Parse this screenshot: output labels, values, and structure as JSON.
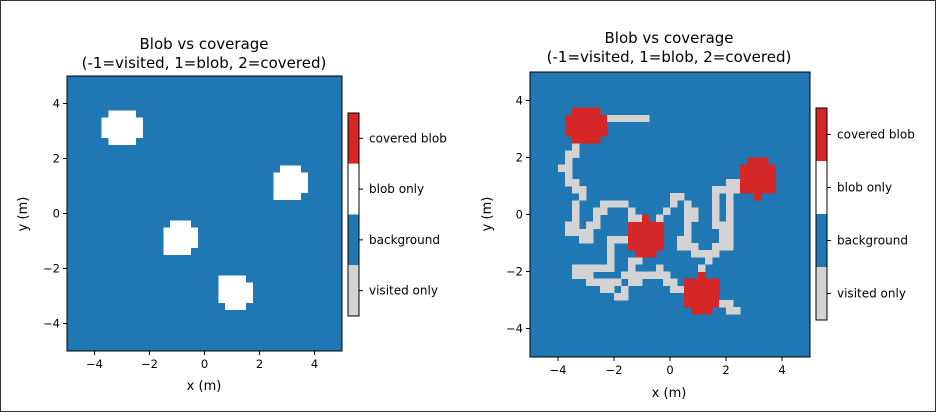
{
  "chart_data": [
    {
      "type": "heatmap",
      "title": "Blob vs coverage",
      "subtitle": "(-1=visited, 1=blob, 2=covered)",
      "xlabel": "x (m)",
      "ylabel": "y (m)",
      "xlim": [
        -5,
        5
      ],
      "ylim": [
        -5,
        5
      ],
      "xticks": [
        "−4",
        "−2",
        "0",
        "2",
        "4"
      ],
      "yticks": [
        "−4",
        "−2",
        "0",
        "2",
        "4"
      ],
      "grid": false,
      "colormap": [
        {
          "value": 2,
          "label": "covered blob",
          "color": "#d62728"
        },
        {
          "value": 1,
          "label": "blob only",
          "color": "#ffffff"
        },
        {
          "value": 0,
          "label": "background",
          "color": "#1f77b4"
        },
        {
          "value": -1,
          "label": "visited only",
          "color": "#d3d3d3"
        }
      ],
      "blobs": [
        {
          "x": -3.0,
          "y": 3.1,
          "r": 0.7,
          "value": 1
        },
        {
          "x": 3.1,
          "y": 1.1,
          "r": 0.7,
          "value": 1
        },
        {
          "x": -0.9,
          "y": -0.9,
          "r": 0.7,
          "value": 1
        },
        {
          "x": 1.1,
          "y": -2.85,
          "r": 0.7,
          "value": 1
        }
      ],
      "visited_path": []
    },
    {
      "type": "heatmap",
      "title": "Blob vs coverage",
      "subtitle": "(-1=visited, 1=blob, 2=covered)",
      "xlabel": "x (m)",
      "ylabel": "y (m)",
      "xlim": [
        -5,
        5
      ],
      "ylim": [
        -5,
        5
      ],
      "xticks": [
        "−4",
        "−2",
        "0",
        "2",
        "4"
      ],
      "yticks": [
        "−4",
        "−2",
        "0",
        "2",
        "4"
      ],
      "grid": false,
      "colormap": [
        {
          "value": 2,
          "label": "covered blob",
          "color": "#d62728"
        },
        {
          "value": 1,
          "label": "blob only",
          "color": "#ffffff"
        },
        {
          "value": 0,
          "label": "background",
          "color": "#1f77b4"
        },
        {
          "value": -1,
          "label": "visited only",
          "color": "#d3d3d3"
        }
      ],
      "blobs": [
        {
          "x": -3.0,
          "y": 3.1,
          "r": 0.7,
          "value": 2
        },
        {
          "x": 3.1,
          "y": 1.3,
          "r": 0.7,
          "value": 2
        },
        {
          "x": -0.9,
          "y": -0.8,
          "r": 0.7,
          "value": 2
        },
        {
          "x": 1.1,
          "y": -2.8,
          "r": 0.7,
          "value": 2
        }
      ],
      "visited_path": [
        [
          -0.9,
          3.4
        ],
        [
          -1.7,
          3.4
        ],
        [
          -2.0,
          3.3
        ],
        [
          -3.0,
          3.1
        ],
        [
          -3.8,
          1.5
        ],
        [
          -3.2,
          0.9
        ],
        [
          -3.3,
          0.1
        ],
        [
          -3.6,
          -0.6
        ],
        [
          -2.9,
          -0.8
        ],
        [
          -2.5,
          0.2
        ],
        [
          -1.9,
          0.4
        ],
        [
          -1.4,
          0.2
        ],
        [
          -0.9,
          -0.8
        ],
        [
          -2.2,
          -1.0
        ],
        [
          -2.1,
          -1.9
        ],
        [
          -3.4,
          -2.0
        ],
        [
          -2.3,
          -2.6
        ],
        [
          -1.5,
          -2.1
        ],
        [
          -0.9,
          -0.8
        ],
        [
          0.3,
          0.7
        ],
        [
          0.8,
          0.0
        ],
        [
          0.4,
          -1.2
        ],
        [
          1.1,
          -1.3
        ],
        [
          2.0,
          -1.2
        ],
        [
          2.1,
          0.7
        ],
        [
          3.1,
          1.3
        ],
        [
          1.7,
          0.9
        ],
        [
          1.6,
          0.0
        ],
        [
          2.0,
          -1.1
        ],
        [
          1.0,
          -1.9
        ],
        [
          1.1,
          -2.8
        ],
        [
          2.0,
          -3.2
        ],
        [
          2.3,
          -3.3
        ],
        [
          0.0,
          -2.5
        ],
        [
          -0.5,
          -2.0
        ],
        [
          -1.4,
          -2.4
        ],
        [
          -1.8,
          -3.0
        ]
      ]
    }
  ]
}
